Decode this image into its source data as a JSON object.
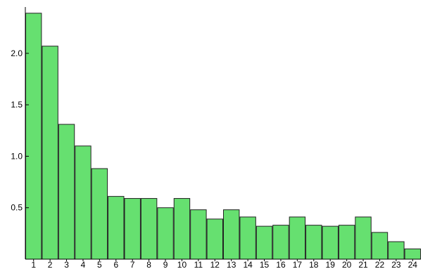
{
  "chart_data": {
    "type": "bar",
    "title": "",
    "xlabel": "",
    "ylabel": "",
    "categories": [
      "1",
      "2",
      "3",
      "4",
      "5",
      "6",
      "7",
      "8",
      "9",
      "10",
      "11",
      "12",
      "13",
      "14",
      "15",
      "16",
      "17",
      "18",
      "19",
      "20",
      "21",
      "22",
      "23",
      "24"
    ],
    "values": [
      2.39,
      2.07,
      1.31,
      1.1,
      0.88,
      0.61,
      0.59,
      0.59,
      0.5,
      0.59,
      0.48,
      0.39,
      0.48,
      0.41,
      0.32,
      0.33,
      0.41,
      0.33,
      0.32,
      0.33,
      0.41,
      0.26,
      0.17,
      0.1
    ],
    "ylim": [
      0,
      2.45
    ],
    "yticks": [
      0.5,
      1.0,
      1.5,
      2.0
    ],
    "ytick_labels": [
      "0.5",
      "1.0",
      "1.5",
      "2.0"
    ],
    "grid": false,
    "colors": {
      "bar_fill": "#66e070",
      "bar_stroke": "#222222"
    }
  }
}
